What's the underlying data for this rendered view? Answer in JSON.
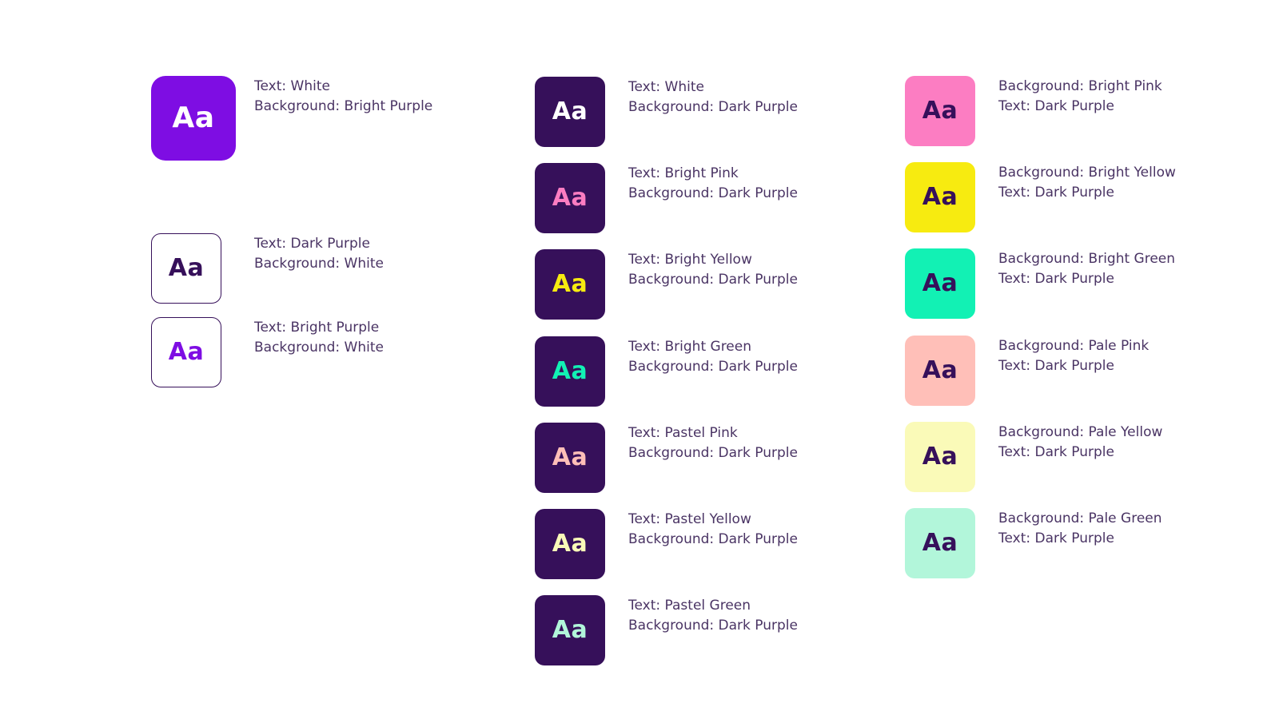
{
  "page": {
    "background": "#FFFFFF"
  },
  "sample_text": "Aa",
  "palette": {
    "white": "#FFFFFF",
    "bright_purple": "#7E0DE3",
    "dark_purple": "#36105A",
    "bright_pink": "#FC7DC2",
    "bright_yellow": "#F7EB10",
    "bright_green": "#12F1B4",
    "pastel_pink": "#FFBFB8",
    "pastel_yellow": "#FAFAB8",
    "pastel_green": "#B2F6DA",
    "label_text": "#4A3464",
    "swatch_border": "#36105A"
  },
  "columns": [
    {
      "name": "text-on-white-and-bright-purple",
      "items": [
        {
          "lines": [
            "Text: White",
            "Background: Bright Purple"
          ],
          "fg": "white",
          "bg": "bright_purple",
          "bordered": false,
          "size": "large"
        },
        {
          "lines": [
            "Text: Dark Purple",
            "Background: White"
          ],
          "fg": "dark_purple",
          "bg": "white",
          "bordered": true,
          "size": "small"
        },
        {
          "lines": [
            "Text: Bright Purple",
            "Background: White"
          ],
          "fg": "bright_purple",
          "bg": "white",
          "bordered": true,
          "size": "small"
        }
      ]
    },
    {
      "name": "text-on-dark-purple",
      "items": [
        {
          "lines": [
            "Text: White",
            "Background: Dark Purple"
          ],
          "fg": "white",
          "bg": "dark_purple",
          "bordered": false,
          "size": "small"
        },
        {
          "lines": [
            "Text: Bright Pink",
            "Background: Dark Purple"
          ],
          "fg": "bright_pink",
          "bg": "dark_purple",
          "bordered": false,
          "size": "small"
        },
        {
          "lines": [
            "Text: Bright Yellow",
            "Background: Dark Purple"
          ],
          "fg": "bright_yellow",
          "bg": "dark_purple",
          "bordered": false,
          "size": "small"
        },
        {
          "lines": [
            "Text: Bright Green",
            "Background: Dark Purple"
          ],
          "fg": "bright_green",
          "bg": "dark_purple",
          "bordered": false,
          "size": "small"
        },
        {
          "lines": [
            "Text: Pastel Pink",
            "Background: Dark Purple"
          ],
          "fg": "pastel_pink",
          "bg": "dark_purple",
          "bordered": false,
          "size": "small"
        },
        {
          "lines": [
            "Text: Pastel Yellow",
            "Background: Dark Purple"
          ],
          "fg": "pastel_yellow",
          "bg": "dark_purple",
          "bordered": false,
          "size": "small"
        },
        {
          "lines": [
            "Text: Pastel Green",
            "Background: Dark Purple"
          ],
          "fg": "pastel_green",
          "bg": "dark_purple",
          "bordered": false,
          "size": "small"
        }
      ]
    },
    {
      "name": "dark-purple-text-on-color",
      "items": [
        {
          "lines": [
            "Background: Bright Pink",
            "Text: Dark Purple"
          ],
          "fg": "dark_purple",
          "bg": "bright_pink",
          "bordered": false,
          "size": "small"
        },
        {
          "lines": [
            "Background: Bright Yellow",
            "Text: Dark Purple"
          ],
          "fg": "dark_purple",
          "bg": "bright_yellow",
          "bordered": false,
          "size": "small"
        },
        {
          "lines": [
            "Background: Bright Green",
            "Text: Dark Purple"
          ],
          "fg": "dark_purple",
          "bg": "bright_green",
          "bordered": false,
          "size": "small"
        },
        {
          "lines": [
            "Background: Pale Pink",
            "Text: Dark Purple"
          ],
          "fg": "dark_purple",
          "bg": "pastel_pink",
          "bordered": false,
          "size": "small"
        },
        {
          "lines": [
            "Background: Pale Yellow",
            "Text: Dark Purple"
          ],
          "fg": "dark_purple",
          "bg": "pastel_yellow",
          "bordered": false,
          "size": "small"
        },
        {
          "lines": [
            "Background: Pale Green",
            "Text: Dark Purple"
          ],
          "fg": "dark_purple",
          "bg": "pastel_green",
          "bordered": false,
          "size": "small"
        }
      ]
    }
  ]
}
